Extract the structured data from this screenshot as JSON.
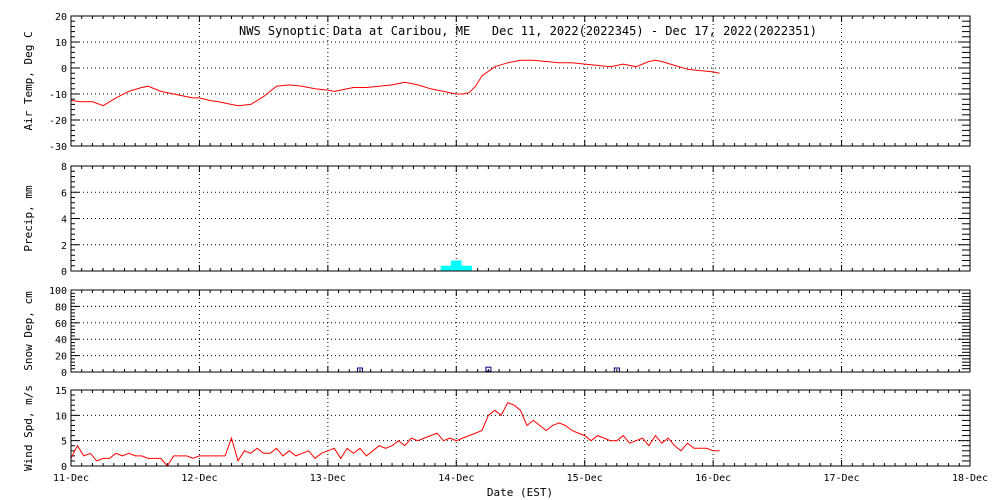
{
  "title": "NWS Synoptic Data at Caribou, ME   Dec 11, 2022(2022345) - Dec 17, 2022(2022351)",
  "xlabel": "Date (EST)",
  "x_ticks": [
    "11-Dec",
    "12-Dec",
    "13-Dec",
    "14-Dec",
    "15-Dec",
    "16-Dec",
    "17-Dec",
    "18-Dec"
  ],
  "x_range_days": [
    0,
    7
  ],
  "colors": {
    "line": "#ff0000",
    "precip": "#00ffff",
    "snow": "#000080",
    "frame": "#000000"
  },
  "chart_data": [
    {
      "type": "line",
      "ylabel": "Air Temp, Deg C",
      "ylim": [
        -30,
        20
      ],
      "yticks": [
        -30,
        -20,
        -10,
        0,
        10,
        20
      ],
      "grid": true,
      "series": [
        {
          "x": [
            0,
            0.08,
            0.17,
            0.25,
            0.35,
            0.45,
            0.55,
            0.6,
            0.7,
            0.8,
            0.9,
            0.95,
            1.0,
            1.08,
            1.15,
            1.2,
            1.3,
            1.4,
            1.5,
            1.55,
            1.6,
            1.7,
            1.8,
            1.9,
            2.0,
            2.05,
            2.2,
            2.3,
            2.4,
            2.5,
            2.6,
            2.7,
            2.8,
            2.9,
            2.95,
            3.0,
            3.05,
            3.1,
            3.15,
            3.2,
            3.3,
            3.4,
            3.5,
            3.6,
            3.7,
            3.8,
            3.9,
            4.0,
            4.1,
            4.2,
            4.3,
            4.4,
            4.5,
            4.55,
            4.6,
            4.7,
            4.8,
            4.9,
            5.0,
            5.05
          ],
          "values": [
            -12.5,
            -13.0,
            -13.0,
            -14.5,
            -11.5,
            -9.0,
            -7.5,
            -7.0,
            -9.0,
            -10.0,
            -11.0,
            -11.5,
            -11.5,
            -12.5,
            -13.0,
            -13.5,
            -14.5,
            -14.0,
            -11.0,
            -9.0,
            -7.0,
            -6.5,
            -7.0,
            -8.0,
            -8.5,
            -9.0,
            -7.5,
            -7.5,
            -7.0,
            -6.5,
            -5.5,
            -6.5,
            -8.0,
            -9.0,
            -9.5,
            -10.0,
            -10.0,
            -9.5,
            -7.0,
            -3.0,
            0.5,
            2.0,
            3.0,
            3.0,
            2.5,
            2.0,
            2.0,
            1.5,
            1.0,
            0.5,
            1.5,
            0.5,
            2.5,
            3.0,
            2.5,
            1.0,
            -0.5,
            -1.0,
            -1.5,
            -2.0
          ]
        }
      ]
    },
    {
      "type": "bar",
      "ylabel": "Precip, mm",
      "ylim": [
        0,
        8
      ],
      "yticks": [
        0,
        2,
        4,
        6,
        8
      ],
      "grid": true,
      "bars": [
        {
          "x": 3.0,
          "value": 0.8
        },
        {
          "x": 2.92,
          "value": 0.4
        },
        {
          "x": 3.08,
          "value": 0.4
        }
      ]
    },
    {
      "type": "scatter",
      "ylabel": "Snow Dep, cm",
      "ylim": [
        0,
        100
      ],
      "yticks": [
        0,
        20,
        40,
        60,
        80,
        100
      ],
      "grid": true,
      "points": [
        {
          "x": 2.25,
          "value": 0
        },
        {
          "x": 3.25,
          "value": 1
        },
        {
          "x": 4.25,
          "value": 0
        }
      ]
    },
    {
      "type": "line",
      "ylabel": "Wind Spd, m/s",
      "ylim": [
        0,
        15
      ],
      "yticks": [
        0,
        5,
        10,
        15
      ],
      "grid": true,
      "series": [
        {
          "x": [
            0,
            0.05,
            0.1,
            0.15,
            0.2,
            0.25,
            0.3,
            0.35,
            0.4,
            0.45,
            0.5,
            0.55,
            0.6,
            0.65,
            0.7,
            0.75,
            0.8,
            0.85,
            0.9,
            0.95,
            1.0,
            1.05,
            1.1,
            1.15,
            1.2,
            1.25,
            1.3,
            1.35,
            1.4,
            1.45,
            1.5,
            1.55,
            1.6,
            1.65,
            1.7,
            1.75,
            1.8,
            1.85,
            1.9,
            1.95,
            2.0,
            2.05,
            2.1,
            2.15,
            2.2,
            2.25,
            2.3,
            2.35,
            2.4,
            2.45,
            2.5,
            2.55,
            2.6,
            2.65,
            2.7,
            2.75,
            2.8,
            2.85,
            2.9,
            2.95,
            3.0,
            3.05,
            3.1,
            3.15,
            3.2,
            3.25,
            3.3,
            3.35,
            3.4,
            3.45,
            3.5,
            3.55,
            3.6,
            3.65,
            3.7,
            3.75,
            3.8,
            3.85,
            3.9,
            3.95,
            4.0,
            4.05,
            4.1,
            4.15,
            4.2,
            4.25,
            4.3,
            4.35,
            4.4,
            4.45,
            4.5,
            4.55,
            4.6,
            4.65,
            4.7,
            4.75,
            4.8,
            4.85,
            4.9,
            4.95,
            5.0,
            5.05
          ],
          "values": [
            1.5,
            4.0,
            2.0,
            2.5,
            1.0,
            1.5,
            1.5,
            2.5,
            2.0,
            2.5,
            2.0,
            2.0,
            1.5,
            1.5,
            1.5,
            0.0,
            2.0,
            2.0,
            2.0,
            1.5,
            2.0,
            2.0,
            2.0,
            2.0,
            2.0,
            5.5,
            1.0,
            3.0,
            2.5,
            3.5,
            2.5,
            2.5,
            3.5,
            2.0,
            3.0,
            2.0,
            2.5,
            3.0,
            1.5,
            2.5,
            3.0,
            3.5,
            1.5,
            3.5,
            2.5,
            3.5,
            2.0,
            3.0,
            4.0,
            3.5,
            4.0,
            5.0,
            4.0,
            5.5,
            5.0,
            5.5,
            6.0,
            6.5,
            5.0,
            5.5,
            5.0,
            5.5,
            6.0,
            6.5,
            7.0,
            10.0,
            11.0,
            10.0,
            12.5,
            12.0,
            11.0,
            8.0,
            9.0,
            8.0,
            7.0,
            8.0,
            8.5,
            8.0,
            7.0,
            6.5,
            6.0,
            5.0,
            6.0,
            5.5,
            5.0,
            5.0,
            6.0,
            4.5,
            5.0,
            5.5,
            4.0,
            6.0,
            4.5,
            5.5,
            4.0,
            3.0,
            4.5,
            3.5,
            3.5,
            3.5,
            3.0,
            3.0
          ]
        }
      ]
    }
  ]
}
